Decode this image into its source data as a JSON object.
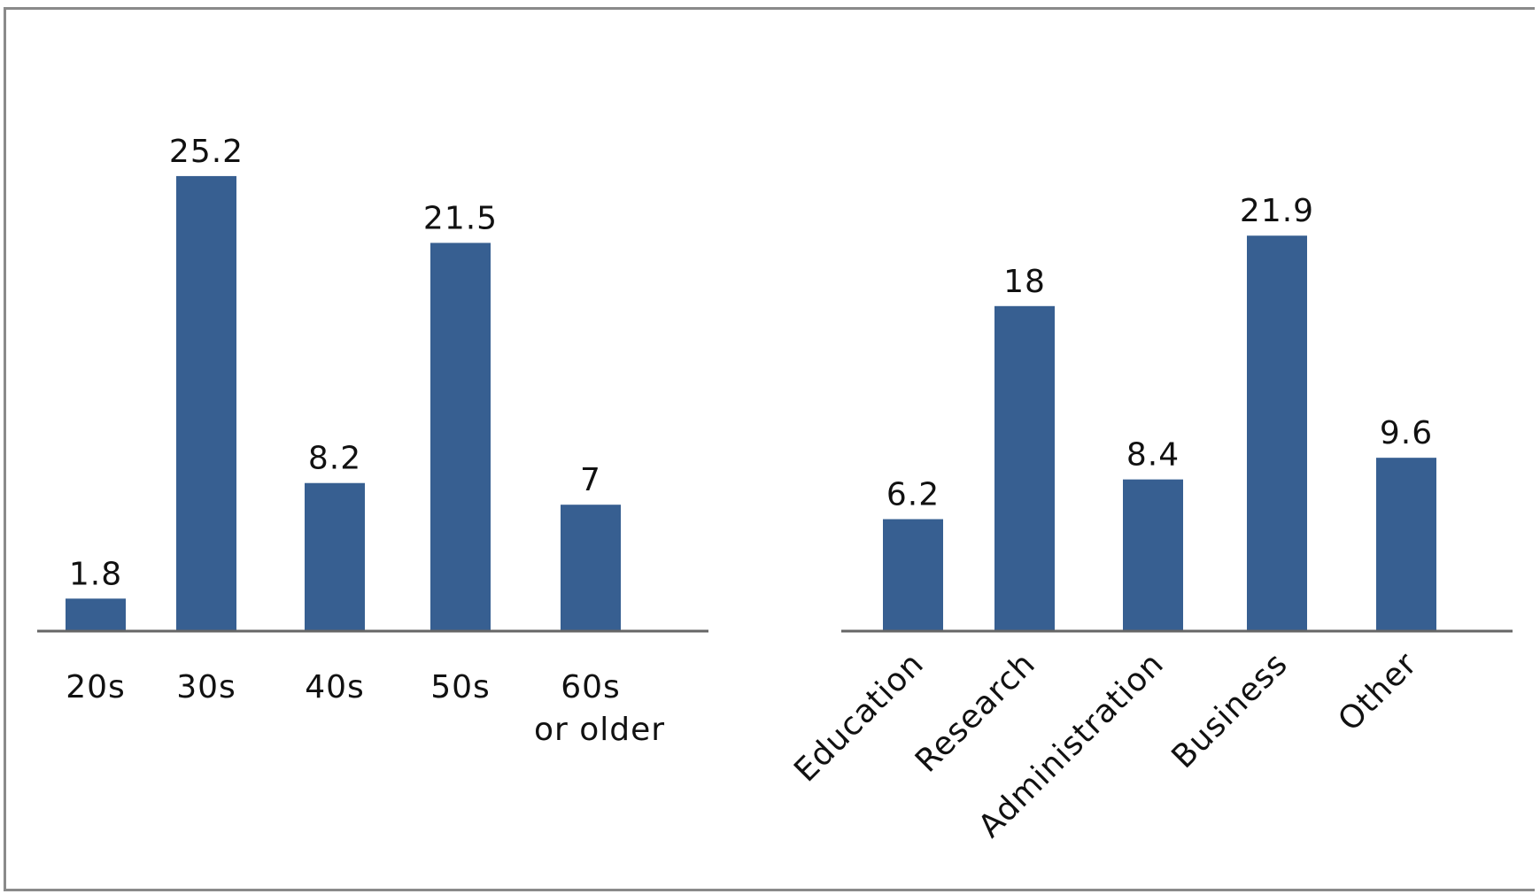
{
  "colors": {
    "bar": "#375f91",
    "axis": "#666666",
    "text": "#111111",
    "border": "#8a8a8a"
  },
  "chart_data": [
    {
      "type": "bar",
      "categories": [
        "20s",
        "30s",
        "40s",
        "50s",
        "60s\nor older"
      ],
      "values": [
        1.8,
        25.2,
        8.2,
        21.5,
        7
      ],
      "value_labels": [
        "1.8",
        "25.2",
        "8.2",
        "21.5",
        "7"
      ],
      "title": "",
      "xlabel": "",
      "ylabel": "",
      "grid": false,
      "legend": "none",
      "tick_rotation": 0
    },
    {
      "type": "bar",
      "categories": [
        "Education",
        "Research",
        "Administration",
        "Business",
        "Other"
      ],
      "values": [
        6.2,
        18,
        8.4,
        21.9,
        9.6
      ],
      "value_labels": [
        "6.2",
        "18",
        "8.4",
        "21.9",
        "9.6"
      ],
      "title": "",
      "xlabel": "",
      "ylabel": "",
      "grid": false,
      "legend": "none",
      "tick_rotation": -45
    }
  ]
}
